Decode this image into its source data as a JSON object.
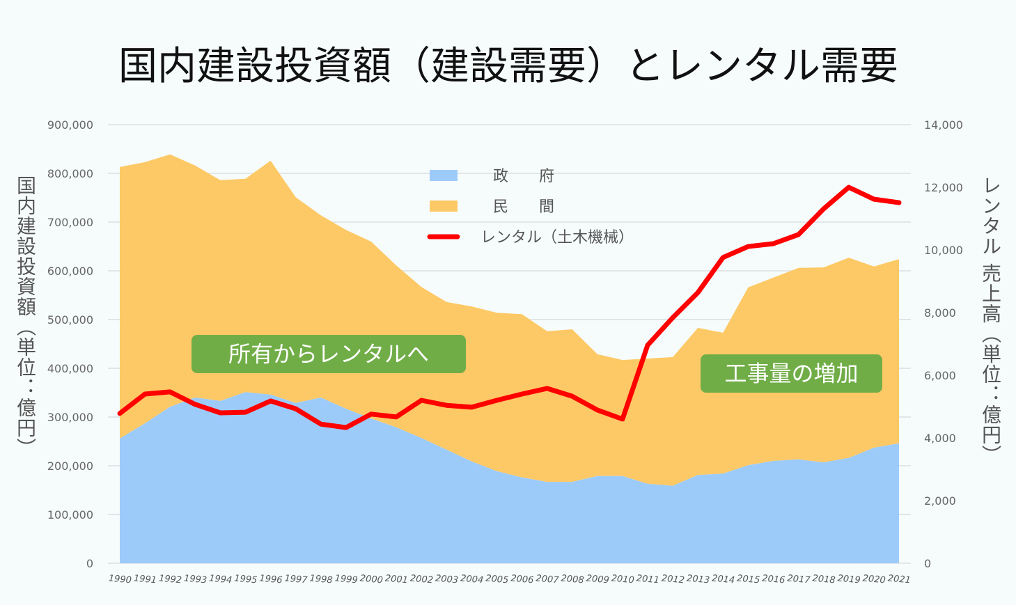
{
  "chart_data": {
    "type": "area",
    "title": "国内建設投資額（建設需要）とレンタル需要",
    "ylabel": "国内建設投資額（単位：億円）",
    "y2label": "レンタル 売上高（単位：億円）",
    "ylim": [
      0,
      900000
    ],
    "y2lim": [
      0,
      14000
    ],
    "yticks": [
      "0",
      "100,000",
      "200,000",
      "300,000",
      "400,000",
      "500,000",
      "600,000",
      "700,000",
      "800,000",
      "900,000"
    ],
    "y2ticks": [
      "0",
      "2,000",
      "4,000",
      "6,000",
      "8,000",
      "10,000",
      "12,000",
      "14,000"
    ],
    "grid": true,
    "legend_position": "top-center",
    "x": [
      "1990",
      "1991",
      "1992",
      "1993",
      "1994",
      "1995",
      "1996",
      "1997",
      "1998",
      "1999",
      "2000",
      "2001",
      "2002",
      "2003",
      "2004",
      "2005",
      "2006",
      "2007",
      "2008",
      "2009",
      "2010",
      "2011",
      "2012",
      "2013",
      "2014",
      "2015",
      "2016",
      "2017",
      "2018",
      "2019",
      "2020",
      "2021"
    ],
    "series": [
      {
        "name": "政　　府",
        "kind": "stacked-area",
        "axis": "left",
        "color": "#9dcbf9",
        "values": [
          256000,
          287000,
          321000,
          340000,
          333000,
          351000,
          346000,
          329000,
          340000,
          317000,
          297000,
          279000,
          257000,
          233000,
          209000,
          189000,
          176000,
          167000,
          167000,
          179000,
          179000,
          163000,
          159000,
          181000,
          184000,
          201000,
          210000,
          213000,
          207000,
          216000,
          237000,
          246000
        ]
      },
      {
        "name": "民　　間",
        "kind": "stacked-area",
        "axis": "left",
        "color": "#fdc966",
        "values": [
          557000,
          536000,
          518000,
          476000,
          453000,
          438000,
          480000,
          422000,
          374000,
          367000,
          363000,
          332000,
          310000,
          303000,
          318000,
          325000,
          335000,
          309000,
          313000,
          250000,
          238000,
          257000,
          264000,
          302000,
          289000,
          365000,
          376000,
          393000,
          400000,
          411000,
          372000,
          378000
        ]
      },
      {
        "name": "レンタル（土木機械）",
        "kind": "line",
        "axis": "right",
        "color": "#ff0000",
        "values": [
          4780,
          5400,
          5470,
          5070,
          4800,
          4820,
          5180,
          4930,
          4440,
          4330,
          4760,
          4670,
          5200,
          5040,
          4980,
          5200,
          5400,
          5580,
          5330,
          4890,
          4600,
          6960,
          7840,
          8640,
          9760,
          10110,
          10200,
          10490,
          11310,
          12000,
          11620,
          11510
        ]
      }
    ],
    "annotations": [
      {
        "text": "所有からレンタルへ",
        "color": "#70ad47"
      },
      {
        "text": "工事量の増加",
        "color": "#70ad47"
      }
    ]
  }
}
